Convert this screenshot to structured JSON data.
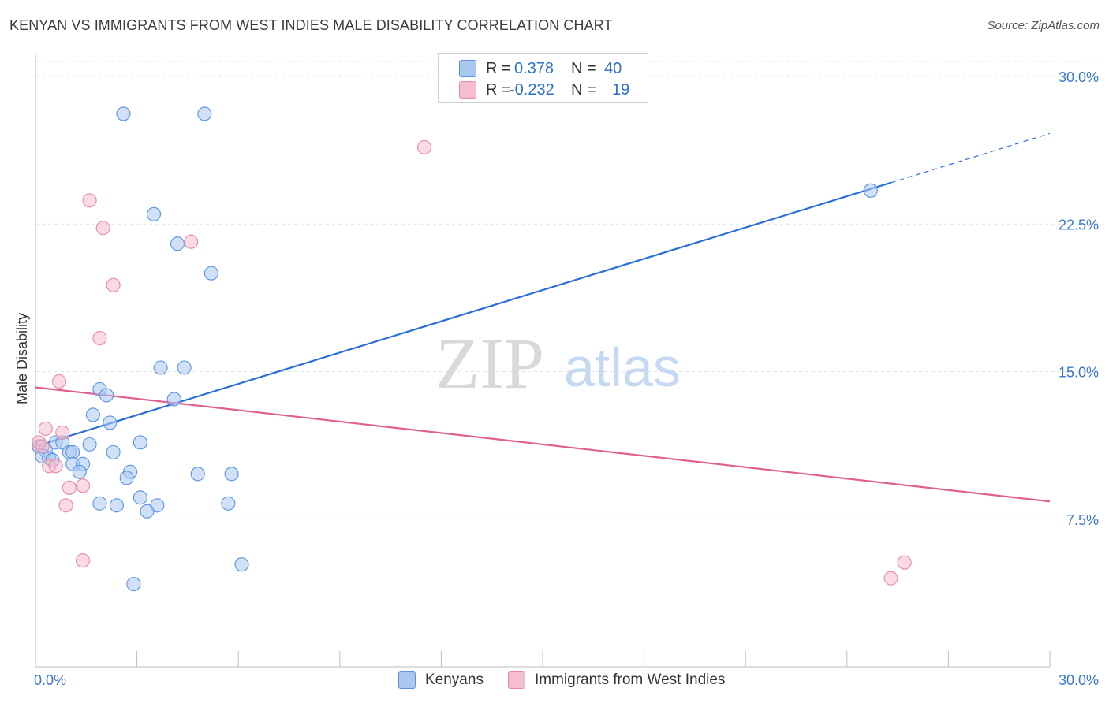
{
  "title": "KENYAN VS IMMIGRANTS FROM WEST INDIES MALE DISABILITY CORRELATION CHART",
  "source": "Source: ZipAtlas.com",
  "watermark": {
    "zip": "ZIP",
    "atlas": "atlas"
  },
  "legend": {
    "rows": [
      {
        "r_label": "R =",
        "r_value": "0.378",
        "n_label": "N =",
        "n_value": "40",
        "color": "#a9c8f0"
      },
      {
        "r_label": "R =",
        "r_value": "-0.232",
        "n_label": "N =",
        "n_value": "19",
        "color": "#f6bcd0"
      }
    ]
  },
  "bottom_legend": [
    {
      "label": "Kenyans",
      "color": "#a9c8f0"
    },
    {
      "label": "Immigrants from West Indies",
      "color": "#f6bcd0"
    }
  ],
  "chart_data": {
    "type": "scatter",
    "title": "KENYAN VS IMMIGRANTS FROM WEST INDIES MALE DISABILITY CORRELATION CHART",
    "xlabel": "",
    "ylabel": "Male Disability",
    "xlim": [
      0,
      30
    ],
    "ylim": [
      0,
      30
    ],
    "x_tick_labels": [
      "0.0%",
      "30.0%"
    ],
    "y_ticks": [
      7.5,
      15.0,
      22.5,
      30.0
    ],
    "y_tick_labels": [
      "7.5%",
      "15.0%",
      "22.5%",
      "30.0%"
    ],
    "grid": true,
    "series": [
      {
        "name": "Kenyans",
        "color": "#5b93e0",
        "fill": "#a9c8f0",
        "line_color": "#2a6fd6",
        "points": [
          [
            2.6,
            28.1
          ],
          [
            5.0,
            28.1
          ],
          [
            3.5,
            23.0
          ],
          [
            4.2,
            21.5
          ],
          [
            5.2,
            20.0
          ],
          [
            3.7,
            15.2
          ],
          [
            4.4,
            15.2
          ],
          [
            1.9,
            14.1
          ],
          [
            2.1,
            13.8
          ],
          [
            4.1,
            13.6
          ],
          [
            1.7,
            12.8
          ],
          [
            2.2,
            12.4
          ],
          [
            3.1,
            11.4
          ],
          [
            0.6,
            11.4
          ],
          [
            0.8,
            11.4
          ],
          [
            1.6,
            11.3
          ],
          [
            0.1,
            11.2
          ],
          [
            0.3,
            11.0
          ],
          [
            1.0,
            10.9
          ],
          [
            1.1,
            10.9
          ],
          [
            2.3,
            10.9
          ],
          [
            0.2,
            10.7
          ],
          [
            0.4,
            10.6
          ],
          [
            0.5,
            10.5
          ],
          [
            1.1,
            10.3
          ],
          [
            1.4,
            10.3
          ],
          [
            1.3,
            9.9
          ],
          [
            2.8,
            9.9
          ],
          [
            2.7,
            9.6
          ],
          [
            4.8,
            9.8
          ],
          [
            5.8,
            9.8
          ],
          [
            3.1,
            8.6
          ],
          [
            1.9,
            8.3
          ],
          [
            2.4,
            8.2
          ],
          [
            3.6,
            8.2
          ],
          [
            5.7,
            8.3
          ],
          [
            3.3,
            7.9
          ],
          [
            6.1,
            5.2
          ],
          [
            2.9,
            4.2
          ],
          [
            24.7,
            24.2
          ]
        ],
        "trend": {
          "x0": 0.0,
          "y0": 11.2,
          "x1": 25.3,
          "y1": 24.6,
          "dash_to_x": 30.0,
          "dash_to_y": 27.1
        }
      },
      {
        "name": "Immigrants from West Indies",
        "color": "#e889a8",
        "fill": "#f6bcd0",
        "line_color": "#e0608e",
        "points": [
          [
            11.5,
            26.4
          ],
          [
            1.6,
            23.7
          ],
          [
            2.0,
            22.3
          ],
          [
            4.6,
            21.6
          ],
          [
            2.3,
            19.4
          ],
          [
            1.9,
            16.7
          ],
          [
            0.7,
            14.5
          ],
          [
            0.3,
            12.1
          ],
          [
            0.8,
            11.9
          ],
          [
            0.1,
            11.4
          ],
          [
            0.2,
            11.2
          ],
          [
            0.4,
            10.2
          ],
          [
            0.6,
            10.2
          ],
          [
            1.4,
            9.2
          ],
          [
            1.0,
            9.1
          ],
          [
            0.9,
            8.2
          ],
          [
            1.4,
            5.4
          ],
          [
            25.7,
            5.3
          ],
          [
            25.3,
            4.5
          ]
        ],
        "trend": {
          "x0": 0.0,
          "y0": 14.2,
          "x1": 30.0,
          "y1": 8.4
        }
      }
    ]
  }
}
